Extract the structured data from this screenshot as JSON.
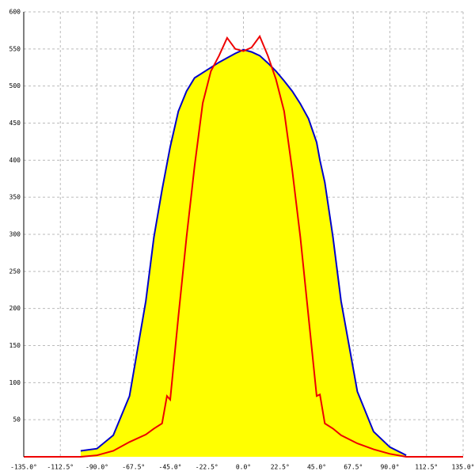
{
  "chart_data": {
    "type": "area-line",
    "x": [
      -135,
      -100,
      -90,
      -80,
      -70,
      -60,
      -55,
      -50,
      -47,
      -45,
      -40,
      -35,
      -30,
      -25,
      -20,
      -15,
      -10,
      -5,
      0,
      5,
      10,
      15,
      20,
      25,
      30,
      35,
      40,
      45,
      47,
      50,
      55,
      60,
      70,
      80,
      90,
      100,
      135
    ],
    "series": [
      {
        "color": "#0000cc",
        "fill": "#ffff00",
        "values": [
          null,
          8,
          11,
          29,
          82,
          210,
          296,
          360,
          395,
          418,
          466,
          493,
          511,
          518,
          525,
          532,
          538,
          544,
          549,
          546,
          541,
          531,
          520,
          507,
          493,
          476,
          456,
          424,
          400,
          370,
          296,
          210,
          88,
          34,
          13,
          2,
          null
        ]
      },
      {
        "color": "#ee0000",
        "values": [
          0,
          0,
          2,
          8,
          20,
          30,
          38,
          45,
          82,
          77,
          189,
          296,
          392,
          477,
          520,
          541,
          565,
          550,
          547,
          552,
          567,
          541,
          509,
          466,
          386,
          296,
          189,
          82,
          84,
          45,
          38,
          29,
          18,
          10,
          4,
          0,
          0
        ]
      }
    ],
    "xlim": [
      -135,
      135
    ],
    "ylim": [
      0,
      600
    ],
    "xticks": [
      {
        "value": -135,
        "label": "-135.0°"
      },
      {
        "value": -112.5,
        "label": "-112.5°"
      },
      {
        "value": -90,
        "label": "-90.0°"
      },
      {
        "value": -67.5,
        "label": "-67.5°"
      },
      {
        "value": -45,
        "label": "-45.0°"
      },
      {
        "value": -22.5,
        "label": "-22.5°"
      },
      {
        "value": 0,
        "label": "0.0°"
      },
      {
        "value": 22.5,
        "label": "22.5°"
      },
      {
        "value": 45,
        "label": "45.0°"
      },
      {
        "value": 67.5,
        "label": "67.5°"
      },
      {
        "value": 90,
        "label": "90.0°"
      },
      {
        "value": 112.5,
        "label": "112.5°"
      },
      {
        "value": 135,
        "label": "135.0°"
      }
    ],
    "yticks": [
      50,
      100,
      150,
      200,
      250,
      300,
      350,
      400,
      450,
      500,
      550,
      600
    ],
    "grid": true
  }
}
